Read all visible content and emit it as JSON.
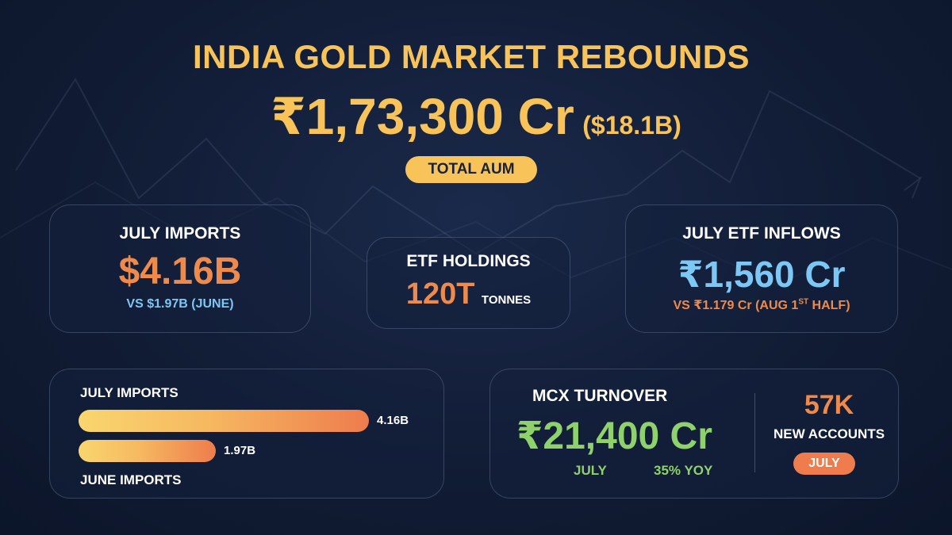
{
  "title": "INDIA GOLD MARKET REBOUNDS",
  "aum": {
    "value": "₹1,73,300 Cr",
    "usd": "($18.1B)",
    "label": "TOTAL AUM"
  },
  "july_imports": {
    "label": "JULY IMPORTS",
    "value": "$4.16B",
    "compare": "VS $1.97B (JUNE)"
  },
  "etf_holdings": {
    "label": "ETF HOLDINGS",
    "value": "120T",
    "unit": "TONNES"
  },
  "etf_inflows": {
    "label": "JULY ETF INFLOWS",
    "value": "₹1,560 Cr",
    "compare_prefix": "VS ₹1.179 Cr (AUG 1",
    "compare_sup": "ST",
    "compare_suffix": " HALF)"
  },
  "mcx": {
    "label": "MCX TURNOVER",
    "value": "₹21,400 Cr",
    "period": "JULY",
    "growth": "35% YOY"
  },
  "accounts": {
    "value": "57K",
    "label": "NEW ACCOUNTS",
    "period": "JULY"
  },
  "colors": {
    "gold": "#f8c45a",
    "orange": "#f08a4b",
    "blue": "#7cc7f4",
    "green": "#8fd16a"
  },
  "chart_data": {
    "type": "bar",
    "orientation": "horizontal",
    "categories": [
      "JULY IMPORTS",
      "JUNE IMPORTS"
    ],
    "values": [
      4.16,
      1.97
    ],
    "value_labels": [
      "4.16B",
      "1.97B"
    ],
    "xlim": [
      0,
      4.16
    ],
    "grid": false
  }
}
